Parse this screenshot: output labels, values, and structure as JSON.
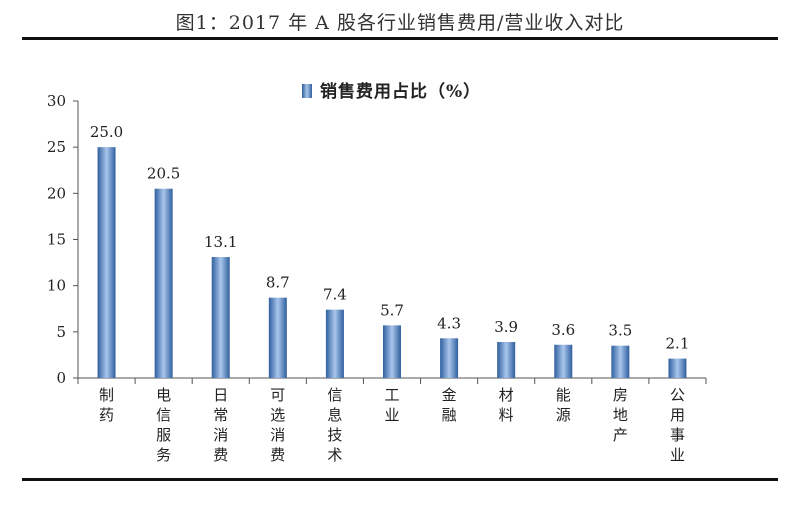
{
  "figure_title": "图1：2017 年 A 股各行业销售费用/营业收入对比",
  "chart_data": {
    "type": "bar",
    "title": "",
    "xlabel": "",
    "ylabel": "",
    "ylim": [
      0,
      30
    ],
    "yticks": [
      0,
      5,
      10,
      15,
      20,
      25,
      30
    ],
    "grid": false,
    "legend_position": "top-center",
    "categories": [
      "制药",
      "电信服务",
      "日常消费",
      "可选消费",
      "信息技术",
      "工业",
      "金融",
      "材料",
      "能源",
      "房地产",
      "公用事业"
    ],
    "series": [
      {
        "name": "销售费用占比（%）",
        "values": [
          25.0,
          20.5,
          13.1,
          8.7,
          7.4,
          5.7,
          4.3,
          3.9,
          3.6,
          3.5,
          2.1
        ],
        "labels": [
          "25.0",
          "20.5",
          "13.1",
          "8.7",
          "7.4",
          "5.7",
          "4.3",
          "3.9",
          "3.6",
          "3.5",
          "2.1"
        ]
      }
    ],
    "colors": {
      "bar_dark": "#2f5f9e",
      "bar_light": "#a9c6ec"
    }
  }
}
